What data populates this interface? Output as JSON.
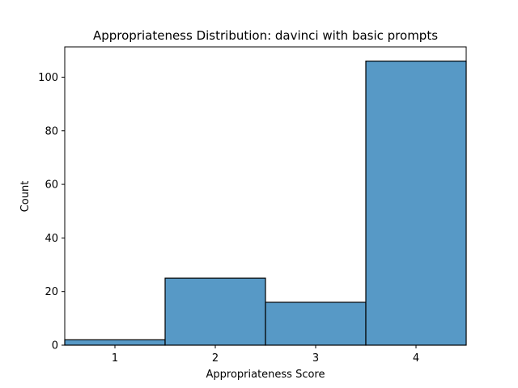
{
  "chart_data": {
    "type": "bar",
    "title": "Appropriateness Distribution: davinci with basic prompts",
    "xlabel": "Appropriateness Score",
    "ylabel": "Count",
    "categories": [
      "1",
      "2",
      "3",
      "4"
    ],
    "values": [
      2,
      25,
      16,
      106
    ],
    "xlim": [
      0.5,
      4.5
    ],
    "ylim": [
      0,
      111.3
    ],
    "yticks": [
      0,
      20,
      40,
      60,
      80,
      100
    ],
    "yticks_labels": [
      "0",
      "20",
      "40",
      "60",
      "80",
      "100"
    ],
    "grid": false,
    "legend": "none"
  },
  "colors": {
    "bar_fill": "#5799c6",
    "bar_edge": "#000000",
    "axis": "#000000",
    "background": "#ffffff"
  }
}
